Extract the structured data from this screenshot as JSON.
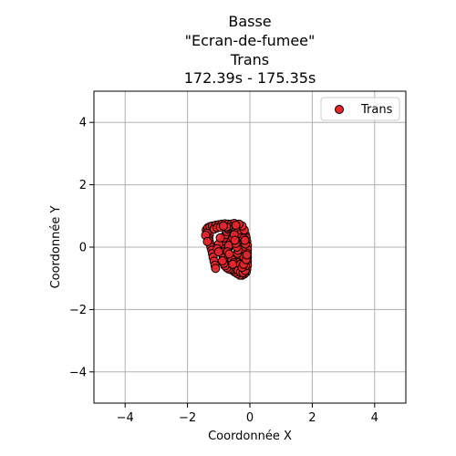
{
  "chart_data": {
    "type": "scatter",
    "title_lines": [
      "Basse",
      "\"Ecran-de-fumee\"",
      "Trans",
      "172.39s - 175.35s"
    ],
    "xlabel": "Coordonnée X",
    "ylabel": "Coordonnée Y",
    "xlim": [
      -5,
      5
    ],
    "ylim": [
      -5,
      5
    ],
    "xticks": [
      -4,
      -2,
      0,
      2,
      4
    ],
    "yticks": [
      -4,
      -2,
      0,
      2,
      4
    ],
    "xtick_labels": [
      "−4",
      "−2",
      "0",
      "2",
      "4"
    ],
    "ytick_labels": [
      "−4",
      "−2",
      "0",
      "2",
      "4"
    ],
    "grid": true,
    "legend_position": "top-right",
    "series": [
      {
        "name": "Trans",
        "color": "#e8262b",
        "edgecolor": "#000000",
        "points": [
          [
            -1.4,
            0.55
          ],
          [
            -1.35,
            0.62
          ],
          [
            -1.28,
            0.66
          ],
          [
            -1.2,
            0.68
          ],
          [
            -1.1,
            0.7
          ],
          [
            -1.0,
            0.72
          ],
          [
            -0.9,
            0.74
          ],
          [
            -0.8,
            0.75
          ],
          [
            -0.7,
            0.74
          ],
          [
            -0.6,
            0.74
          ],
          [
            -0.5,
            0.76
          ],
          [
            -0.4,
            0.72
          ],
          [
            -0.32,
            0.65
          ],
          [
            -0.25,
            0.58
          ],
          [
            -0.2,
            0.48
          ],
          [
            -0.15,
            0.4
          ],
          [
            -0.12,
            0.3
          ],
          [
            -0.1,
            0.18
          ],
          [
            -0.08,
            0.05
          ],
          [
            -0.08,
            -0.08
          ],
          [
            -0.08,
            -0.2
          ],
          [
            -0.08,
            -0.32
          ],
          [
            -0.08,
            -0.45
          ],
          [
            -0.08,
            -0.58
          ],
          [
            -0.1,
            -0.7
          ],
          [
            -0.12,
            -0.8
          ],
          [
            -0.18,
            -0.86
          ],
          [
            -0.25,
            -0.9
          ],
          [
            -0.32,
            -0.9
          ],
          [
            -0.4,
            -0.85
          ],
          [
            -0.48,
            -0.8
          ],
          [
            -0.55,
            -0.75
          ],
          [
            -0.62,
            -0.68
          ],
          [
            -0.68,
            -0.6
          ],
          [
            -0.72,
            -0.52
          ],
          [
            -0.78,
            -0.45
          ],
          [
            -0.82,
            -0.38
          ],
          [
            -0.86,
            -0.3
          ],
          [
            -0.9,
            -0.2
          ],
          [
            -0.92,
            -0.1
          ],
          [
            -0.9,
            0.0
          ],
          [
            -0.88,
            0.1
          ],
          [
            -0.85,
            0.2
          ],
          [
            -0.82,
            0.3
          ],
          [
            -0.78,
            0.4
          ],
          [
            -0.74,
            0.5
          ],
          [
            -0.7,
            0.58
          ],
          [
            -0.65,
            0.62
          ],
          [
            -0.58,
            0.65
          ],
          [
            -0.5,
            0.62
          ],
          [
            -0.45,
            0.55
          ],
          [
            -0.4,
            0.48
          ],
          [
            -0.35,
            0.4
          ],
          [
            -0.3,
            0.3
          ],
          [
            -0.27,
            0.2
          ],
          [
            -0.25,
            0.1
          ],
          [
            -0.24,
            0.0
          ],
          [
            -0.25,
            -0.1
          ],
          [
            -0.28,
            -0.2
          ],
          [
            -0.32,
            -0.3
          ],
          [
            -0.36,
            -0.4
          ],
          [
            -0.4,
            -0.5
          ],
          [
            -0.45,
            -0.58
          ],
          [
            -0.5,
            -0.64
          ],
          [
            -0.56,
            -0.7
          ],
          [
            -0.62,
            -0.72
          ],
          [
            -0.68,
            -0.7
          ],
          [
            -0.74,
            -0.66
          ],
          [
            -0.8,
            -0.6
          ],
          [
            -0.84,
            -0.52
          ],
          [
            -0.88,
            -0.44
          ],
          [
            -1.3,
            0.4
          ],
          [
            -1.32,
            0.3
          ],
          [
            -1.3,
            0.2
          ],
          [
            -1.28,
            0.1
          ],
          [
            -1.25,
            0.0
          ],
          [
            -1.22,
            -0.1
          ],
          [
            -1.2,
            -0.2
          ],
          [
            -1.18,
            -0.32
          ],
          [
            -1.15,
            -0.45
          ],
          [
            -1.12,
            -0.58
          ],
          [
            -1.1,
            -0.68
          ],
          [
            -1.38,
            0.45
          ],
          [
            -1.42,
            0.38
          ],
          [
            -1.36,
            0.18
          ],
          [
            -1.15,
            0.58
          ],
          [
            -1.05,
            0.62
          ],
          [
            -0.95,
            0.64
          ],
          [
            -1.0,
            0.1
          ],
          [
            -0.95,
            0.3
          ],
          [
            -1.05,
            -0.05
          ],
          [
            -1.0,
            -0.15
          ],
          [
            -0.6,
            0.2
          ],
          [
            -0.55,
            0.3
          ],
          [
            -0.5,
            0.4
          ],
          [
            -0.62,
            -0.3
          ],
          [
            -0.58,
            -0.4
          ],
          [
            -0.52,
            -0.5
          ],
          [
            -0.45,
            -0.65
          ],
          [
            -0.38,
            -0.75
          ],
          [
            -0.3,
            -0.8
          ],
          [
            -0.22,
            -0.82
          ],
          [
            -0.15,
            -0.75
          ],
          [
            -0.14,
            -0.6
          ],
          [
            -0.16,
            -0.45
          ],
          [
            -0.2,
            -0.3
          ],
          [
            -0.18,
            0.55
          ],
          [
            -0.25,
            0.68
          ],
          [
            -0.35,
            0.74
          ],
          [
            -0.45,
            0.7
          ],
          [
            -0.2,
            0.28
          ],
          [
            -0.75,
            0.65
          ],
          [
            -0.85,
            0.68
          ],
          [
            -0.7,
            -0.05
          ],
          [
            -0.68,
            0.05
          ],
          [
            -0.72,
            -0.15
          ],
          [
            -0.66,
            -0.22
          ],
          [
            -0.4,
            -0.2
          ],
          [
            -0.38,
            -0.1
          ],
          [
            -0.42,
            0.0
          ],
          [
            -0.45,
            0.12
          ],
          [
            -0.48,
            0.22
          ],
          [
            -0.3,
            -0.55
          ],
          [
            -0.25,
            -0.65
          ],
          [
            -0.2,
            -0.55
          ],
          [
            -0.12,
            -0.4
          ],
          [
            -0.1,
            -0.25
          ],
          [
            -0.14,
            0.1
          ],
          [
            -0.16,
            0.22
          ],
          [
            -0.55,
            -0.55
          ]
        ]
      }
    ]
  }
}
